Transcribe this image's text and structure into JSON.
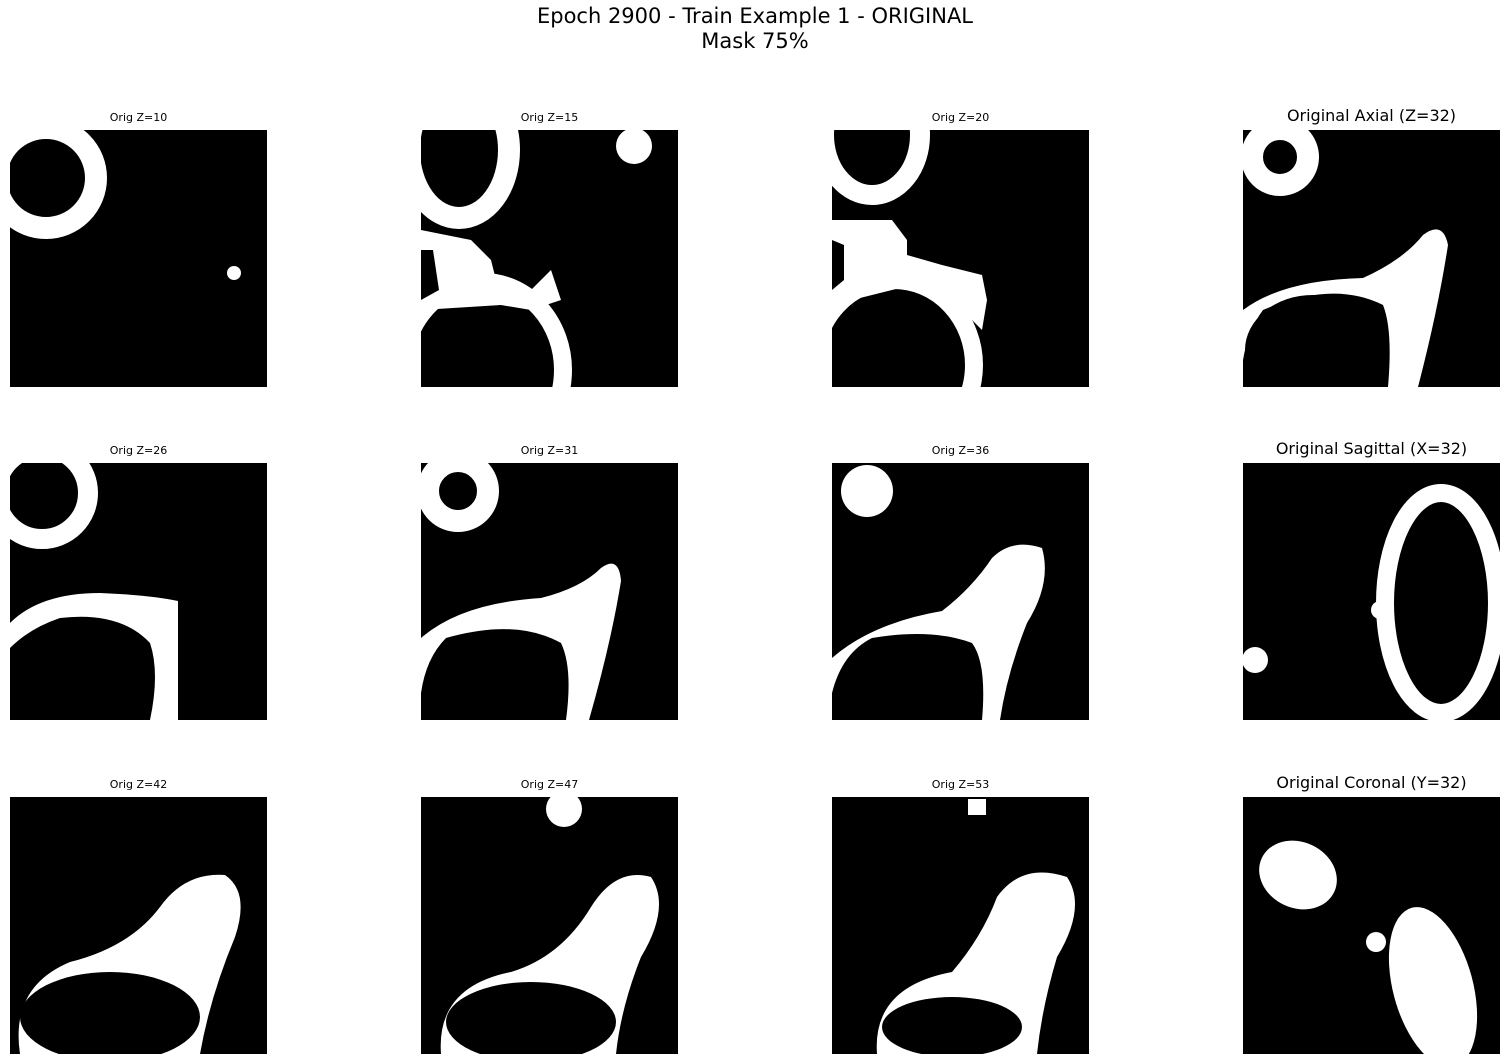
{
  "figure": {
    "title_line1": "Epoch 2900 - Train Example 1 - ORIGINAL",
    "title_line2": "Mask 75%",
    "background_color": "#ffffff",
    "image_foreground_color": "#ffffff",
    "image_background_color": "#000000"
  },
  "panels": [
    {
      "title": "Orig Z=10"
    },
    {
      "title": "Orig Z=15"
    },
    {
      "title": "Orig Z=20"
    },
    {
      "title": "Original Axial (Z=32)"
    },
    {
      "title": "Orig Z=26"
    },
    {
      "title": "Orig Z=31"
    },
    {
      "title": "Orig Z=36"
    },
    {
      "title": "Original Sagittal (X=32)"
    },
    {
      "title": "Orig Z=42"
    },
    {
      "title": "Orig Z=47"
    },
    {
      "title": "Orig Z=53"
    },
    {
      "title": "Original Coronal (Y=32)"
    }
  ]
}
